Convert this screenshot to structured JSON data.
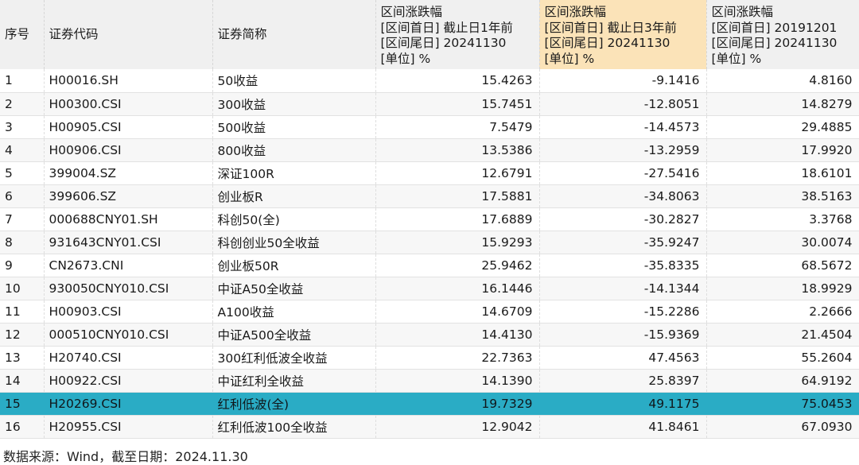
{
  "headers": {
    "idx": "序号",
    "code": "证券代码",
    "name": "证券简称",
    "col1": [
      "区间涨跌幅",
      "[区间首日] 截止日1年前",
      "[区间尾日] 20241130",
      "[单位] %"
    ],
    "col2": [
      "区间涨跌幅",
      "[区间首日] 截止日3年前",
      "[区间尾日] 20241130",
      "[单位] %"
    ],
    "col3": [
      "区间涨跌幅",
      "[区间首日] 20191201",
      "[区间尾日] 20241130",
      "[单位] %"
    ]
  },
  "rows": [
    {
      "idx": "1",
      "code": "H00016.SH",
      "name": "50收益",
      "v1": "15.4263",
      "v2": "-9.1416",
      "v3": "4.8160"
    },
    {
      "idx": "2",
      "code": "H00300.CSI",
      "name": "300收益",
      "v1": "15.7451",
      "v2": "-12.8051",
      "v3": "14.8279"
    },
    {
      "idx": "3",
      "code": "H00905.CSI",
      "name": "500收益",
      "v1": "7.5479",
      "v2": "-14.4573",
      "v3": "29.4885"
    },
    {
      "idx": "4",
      "code": "H00906.CSI",
      "name": "800收益",
      "v1": "13.5386",
      "v2": "-13.2959",
      "v3": "17.9920"
    },
    {
      "idx": "5",
      "code": "399004.SZ",
      "name": "深证100R",
      "v1": "12.6791",
      "v2": "-27.5416",
      "v3": "18.6101"
    },
    {
      "idx": "6",
      "code": "399606.SZ",
      "name": "创业板R",
      "v1": "17.5881",
      "v2": "-34.8063",
      "v3": "38.5163"
    },
    {
      "idx": "7",
      "code": "000688CNY01.SH",
      "name": "科创50(全)",
      "v1": "17.6889",
      "v2": "-30.2827",
      "v3": "3.3768"
    },
    {
      "idx": "8",
      "code": "931643CNY01.CSI",
      "name": "科创创业50全收益",
      "v1": "15.9293",
      "v2": "-35.9247",
      "v3": "30.0074"
    },
    {
      "idx": "9",
      "code": "CN2673.CNI",
      "name": "创业板50R",
      "v1": "25.9462",
      "v2": "-35.8335",
      "v3": "68.5672"
    },
    {
      "idx": "10",
      "code": "930050CNY010.CSI",
      "name": "中证A50全收益",
      "v1": "16.1446",
      "v2": "-14.1344",
      "v3": "18.9929"
    },
    {
      "idx": "11",
      "code": "H00903.CSI",
      "name": "A100收益",
      "v1": "14.6709",
      "v2": "-15.2286",
      "v3": "2.2666"
    },
    {
      "idx": "12",
      "code": "000510CNY010.CSI",
      "name": "中证A500全收益",
      "v1": "14.4130",
      "v2": "-15.9369",
      "v3": "21.4504"
    },
    {
      "idx": "13",
      "code": "H20740.CSI",
      "name": "300红利低波全收益",
      "v1": "22.7363",
      "v2": "47.4563",
      "v3": "55.2604"
    },
    {
      "idx": "14",
      "code": "H00922.CSI",
      "name": "中证红利全收益",
      "v1": "14.1390",
      "v2": "25.8397",
      "v3": "64.9192"
    },
    {
      "idx": "15",
      "code": "H20269.CSI",
      "name": "红利低波(全)",
      "v1": "19.7329",
      "v2": "49.1175",
      "v3": "75.0453",
      "selected": true
    },
    {
      "idx": "16",
      "code": "H20955.CSI",
      "name": "红利低波100全收益",
      "v1": "12.9042",
      "v2": "41.8461",
      "v3": "67.0930"
    }
  ],
  "footer": "数据来源：Wind，截至日期：2024.11.30",
  "colors": {
    "highlight_header": "#fbe3b8",
    "selected_row": "#2aacc5",
    "header_bg": "#f0f0f0"
  }
}
